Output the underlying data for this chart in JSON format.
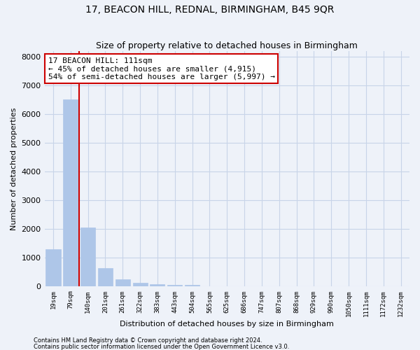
{
  "title": "17, BEACON HILL, REDNAL, BIRMINGHAM, B45 9QR",
  "subtitle": "Size of property relative to detached houses in Birmingham",
  "xlabel": "Distribution of detached houses by size in Birmingham",
  "ylabel": "Number of detached properties",
  "footnote1": "Contains HM Land Registry data © Crown copyright and database right 2024.",
  "footnote2": "Contains public sector information licensed under the Open Government Licence v3.0.",
  "bar_labels": [
    "19sqm",
    "79sqm",
    "140sqm",
    "201sqm",
    "261sqm",
    "322sqm",
    "383sqm",
    "443sqm",
    "504sqm",
    "565sqm",
    "625sqm",
    "686sqm",
    "747sqm",
    "807sqm",
    "868sqm",
    "929sqm",
    "990sqm",
    "1050sqm",
    "1111sqm",
    "1172sqm",
    "1232sqm"
  ],
  "bar_values": [
    1310,
    6530,
    2060,
    640,
    250,
    130,
    95,
    65,
    65,
    0,
    0,
    0,
    0,
    0,
    0,
    0,
    0,
    0,
    0,
    0,
    0
  ],
  "bar_color": "#aec6e8",
  "bar_edge_color": "#aec6e8",
  "grid_color": "#c8d4e8",
  "background_color": "#eef2f9",
  "annotation_line1": "17 BEACON HILL: 111sqm",
  "annotation_line2": "← 45% of detached houses are smaller (4,915)",
  "annotation_line3": "54% of semi-detached houses are larger (5,997) →",
  "vline_x": 1.5,
  "vline_color": "#cc0000",
  "ylim": [
    0,
    8200
  ],
  "yticks": [
    0,
    1000,
    2000,
    3000,
    4000,
    5000,
    6000,
    7000,
    8000
  ],
  "title_fontsize": 10,
  "subtitle_fontsize": 9,
  "xlabel_fontsize": 8,
  "ylabel_fontsize": 8,
  "tick_fontsize": 8,
  "annot_fontsize": 8,
  "footnote_fontsize": 6
}
